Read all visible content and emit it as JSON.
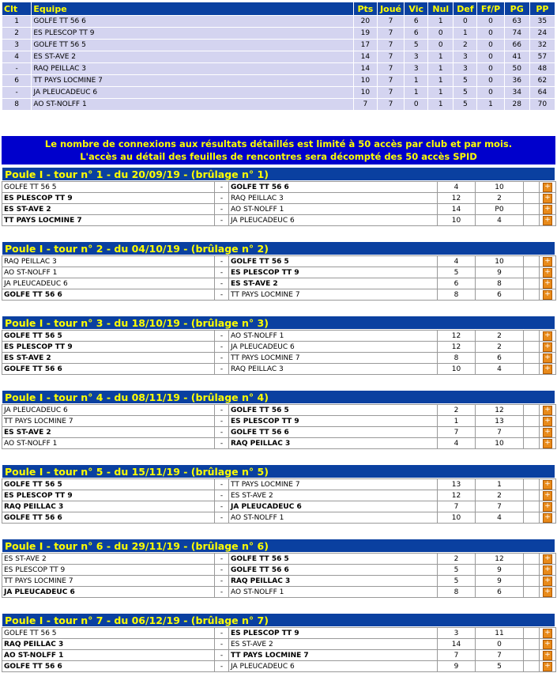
{
  "standings": {
    "headers": {
      "clt": "Clt",
      "equipe": "Equipe",
      "pts": "Pts",
      "joue": "Joué",
      "vic": "Vic",
      "nul": "Nul",
      "def": "Def",
      "ffp": "Ff/P",
      "pg": "PG",
      "pp": "PP"
    },
    "rows": [
      {
        "clt": "1",
        "equipe": "GOLFE TT 56 6",
        "pts": "20",
        "joue": "7",
        "vic": "6",
        "nul": "1",
        "def": "0",
        "ffp": "0",
        "pg": "63",
        "pp": "35"
      },
      {
        "clt": "2",
        "equipe": "ES PLESCOP TT 9",
        "pts": "19",
        "joue": "7",
        "vic": "6",
        "nul": "0",
        "def": "1",
        "ffp": "0",
        "pg": "74",
        "pp": "24"
      },
      {
        "clt": "3",
        "equipe": "GOLFE TT 56 5",
        "pts": "17",
        "joue": "7",
        "vic": "5",
        "nul": "0",
        "def": "2",
        "ffp": "0",
        "pg": "66",
        "pp": "32"
      },
      {
        "clt": "4",
        "equipe": "ES ST-AVE 2",
        "pts": "14",
        "joue": "7",
        "vic": "3",
        "nul": "1",
        "def": "3",
        "ffp": "0",
        "pg": "41",
        "pp": "57"
      },
      {
        "clt": "-",
        "equipe": "RAQ PEILLAC 3",
        "pts": "14",
        "joue": "7",
        "vic": "3",
        "nul": "1",
        "def": "3",
        "ffp": "0",
        "pg": "50",
        "pp": "48"
      },
      {
        "clt": "6",
        "equipe": "TT PAYS LOCMINE 7",
        "pts": "10",
        "joue": "7",
        "vic": "1",
        "nul": "1",
        "def": "5",
        "ffp": "0",
        "pg": "36",
        "pp": "62"
      },
      {
        "clt": "-",
        "equipe": "JA PLEUCADEUC 6",
        "pts": "10",
        "joue": "7",
        "vic": "1",
        "nul": "1",
        "def": "5",
        "ffp": "0",
        "pg": "34",
        "pp": "64"
      },
      {
        "clt": "8",
        "equipe": "AO ST-NOLFF 1",
        "pts": "7",
        "joue": "7",
        "vic": "0",
        "nul": "1",
        "def": "5",
        "ffp": "1",
        "pg": "28",
        "pp": "70"
      }
    ]
  },
  "notice": {
    "line1": "Le nombre de connexions aux résultats détaillés est limité à 50 accès par club et par mois.",
    "line2": "L'accès au détail des feuilles de rencontres sera décompté des 50 accès SPID"
  },
  "detail_icon": "plus-icon",
  "rounds": [
    {
      "title": "Poule I - tour n° 1 - du 20/09/19 - (brûlage n° 1)",
      "matches": [
        {
          "home": "GOLFE TT 56 5",
          "home_bold": false,
          "sep": "-",
          "away": "GOLFE TT 56 6",
          "away_bold": true,
          "sh": "4",
          "sa": "10"
        },
        {
          "home": "ES PLESCOP TT 9",
          "home_bold": true,
          "sep": "-",
          "away": "RAQ PEILLAC 3",
          "away_bold": false,
          "sh": "12",
          "sa": "2"
        },
        {
          "home": "ES ST-AVE 2",
          "home_bold": true,
          "sep": "-",
          "away": "AO ST-NOLFF 1",
          "away_bold": false,
          "sh": "14",
          "sa": "P0"
        },
        {
          "home": "TT PAYS LOCMINE 7",
          "home_bold": true,
          "sep": "-",
          "away": "JA PLEUCADEUC 6",
          "away_bold": false,
          "sh": "10",
          "sa": "4"
        }
      ]
    },
    {
      "title": "Poule I - tour n° 2 - du 04/10/19 - (brûlage n° 2)",
      "matches": [
        {
          "home": "RAQ PEILLAC 3",
          "home_bold": false,
          "sep": "-",
          "away": "GOLFE TT 56 5",
          "away_bold": true,
          "sh": "4",
          "sa": "10"
        },
        {
          "home": "AO ST-NOLFF 1",
          "home_bold": false,
          "sep": "-",
          "away": "ES PLESCOP TT 9",
          "away_bold": true,
          "sh": "5",
          "sa": "9"
        },
        {
          "home": "JA PLEUCADEUC 6",
          "home_bold": false,
          "sep": "-",
          "away": "ES ST-AVE 2",
          "away_bold": true,
          "sh": "6",
          "sa": "8"
        },
        {
          "home": "GOLFE TT 56 6",
          "home_bold": true,
          "sep": "-",
          "away": "TT PAYS LOCMINE 7",
          "away_bold": false,
          "sh": "8",
          "sa": "6"
        }
      ]
    },
    {
      "title": "Poule I - tour n° 3 - du 18/10/19 - (brûlage n° 3)",
      "matches": [
        {
          "home": "GOLFE TT 56 5",
          "home_bold": true,
          "sep": "-",
          "away": "AO ST-NOLFF 1",
          "away_bold": false,
          "sh": "12",
          "sa": "2"
        },
        {
          "home": "ES PLESCOP TT 9",
          "home_bold": true,
          "sep": "-",
          "away": "JA PLEUCADEUC 6",
          "away_bold": false,
          "sh": "12",
          "sa": "2"
        },
        {
          "home": "ES ST-AVE 2",
          "home_bold": true,
          "sep": "-",
          "away": "TT PAYS LOCMINE 7",
          "away_bold": false,
          "sh": "8",
          "sa": "6"
        },
        {
          "home": "GOLFE TT 56 6",
          "home_bold": true,
          "sep": "-",
          "away": "RAQ PEILLAC 3",
          "away_bold": false,
          "sh": "10",
          "sa": "4"
        }
      ]
    },
    {
      "title": "Poule I - tour n° 4 - du 08/11/19 - (brûlage n° 4)",
      "matches": [
        {
          "home": "JA PLEUCADEUC 6",
          "home_bold": false,
          "sep": "-",
          "away": "GOLFE TT 56 5",
          "away_bold": true,
          "sh": "2",
          "sa": "12"
        },
        {
          "home": "TT PAYS LOCMINE 7",
          "home_bold": false,
          "sep": "-",
          "away": "ES PLESCOP TT 9",
          "away_bold": true,
          "sh": "1",
          "sa": "13"
        },
        {
          "home": "ES ST-AVE 2",
          "home_bold": true,
          "sep": "-",
          "away": "GOLFE TT 56 6",
          "away_bold": true,
          "sh": "7",
          "sa": "7"
        },
        {
          "home": "AO ST-NOLFF 1",
          "home_bold": false,
          "sep": "-",
          "away": "RAQ PEILLAC 3",
          "away_bold": true,
          "sh": "4",
          "sa": "10"
        }
      ]
    },
    {
      "title": "Poule I - tour n° 5 - du 15/11/19 - (brûlage n° 5)",
      "matches": [
        {
          "home": "GOLFE TT 56 5",
          "home_bold": true,
          "sep": "-",
          "away": "TT PAYS LOCMINE 7",
          "away_bold": false,
          "sh": "13",
          "sa": "1"
        },
        {
          "home": "ES PLESCOP TT 9",
          "home_bold": true,
          "sep": "-",
          "away": "ES ST-AVE 2",
          "away_bold": false,
          "sh": "12",
          "sa": "2"
        },
        {
          "home": "RAQ PEILLAC 3",
          "home_bold": true,
          "sep": "-",
          "away": "JA PLEUCADEUC 6",
          "away_bold": true,
          "sh": "7",
          "sa": "7"
        },
        {
          "home": "GOLFE TT 56 6",
          "home_bold": true,
          "sep": "-",
          "away": "AO ST-NOLFF 1",
          "away_bold": false,
          "sh": "10",
          "sa": "4"
        }
      ]
    },
    {
      "title": "Poule I - tour n° 6 - du 29/11/19 - (brûlage n° 6)",
      "matches": [
        {
          "home": "ES ST-AVE 2",
          "home_bold": false,
          "sep": "-",
          "away": "GOLFE TT 56 5",
          "away_bold": true,
          "sh": "2",
          "sa": "12"
        },
        {
          "home": "ES PLESCOP TT 9",
          "home_bold": false,
          "sep": "-",
          "away": "GOLFE TT 56 6",
          "away_bold": true,
          "sh": "5",
          "sa": "9"
        },
        {
          "home": "TT PAYS LOCMINE 7",
          "home_bold": false,
          "sep": "-",
          "away": "RAQ PEILLAC 3",
          "away_bold": true,
          "sh": "5",
          "sa": "9"
        },
        {
          "home": "JA PLEUCADEUC 6",
          "home_bold": true,
          "sep": "-",
          "away": "AO ST-NOLFF 1",
          "away_bold": false,
          "sh": "8",
          "sa": "6"
        }
      ]
    },
    {
      "title": "Poule I - tour n° 7 - du 06/12/19 - (brûlage n° 7)",
      "matches": [
        {
          "home": "GOLFE TT 56 5",
          "home_bold": false,
          "sep": "-",
          "away": "ES PLESCOP TT 9",
          "away_bold": true,
          "sh": "3",
          "sa": "11"
        },
        {
          "home": "RAQ PEILLAC 3",
          "home_bold": true,
          "sep": "-",
          "away": "ES ST-AVE 2",
          "away_bold": false,
          "sh": "14",
          "sa": "0"
        },
        {
          "home": "AO ST-NOLFF 1",
          "home_bold": true,
          "sep": "-",
          "away": "TT PAYS LOCMINE 7",
          "away_bold": true,
          "sh": "7",
          "sa": "7"
        },
        {
          "home": "GOLFE TT 56 6",
          "home_bold": true,
          "sep": "-",
          "away": "JA PLEUCADEUC 6",
          "away_bold": false,
          "sh": "9",
          "sa": "5"
        }
      ]
    }
  ]
}
